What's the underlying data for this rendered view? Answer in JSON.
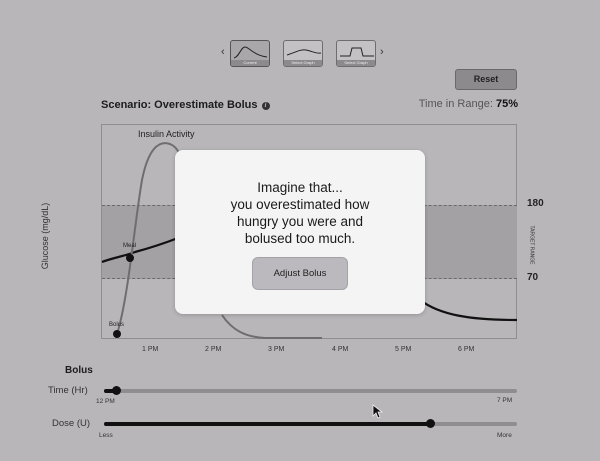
{
  "thumbnails": {
    "prev_arrow": "‹",
    "next_arrow": "›",
    "items": [
      {
        "label": "Current"
      },
      {
        "label": "Select Graph"
      },
      {
        "label": "Select Graph"
      }
    ]
  },
  "reset_label": "Reset",
  "scenario": {
    "label": "Scenario: Overestimate Bolus",
    "info": "i"
  },
  "time_in_range": {
    "label": "Time in Range:",
    "value": "75%"
  },
  "chart": {
    "y_axis_label": "Glucose (mg/dL)",
    "upper_target": "180",
    "lower_target": "70",
    "target_range_label": "TARGET RANGE",
    "insulin_label": "Insulin Activity",
    "meal_label": "Meal",
    "bolus_label": "Bolus",
    "x_ticks": [
      "1 PM",
      "2 PM",
      "3 PM",
      "4 PM",
      "5 PM",
      "6 PM"
    ]
  },
  "modal": {
    "line1": "Imagine that...",
    "line2": "you overestimated how",
    "line3": "hungry you were and",
    "line4": "bolused too much.",
    "button": "Adjust Bolus"
  },
  "bolus_section": {
    "title": "Bolus",
    "time": {
      "label": "Time (Hr)",
      "min_label": "12 PM",
      "max_label": "7 PM",
      "value_fraction": 0.03
    },
    "dose": {
      "label": "Dose (U)",
      "min_label": "Less",
      "max_label": "More",
      "value_fraction": 0.79
    }
  }
}
